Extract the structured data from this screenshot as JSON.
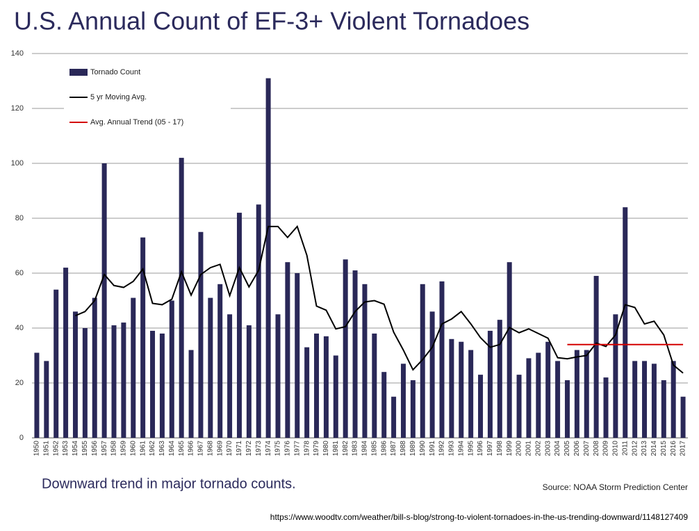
{
  "chart_data": {
    "type": "bar",
    "title": "U.S. Annual Count of EF-3+ Violent Tornadoes",
    "caption": "Downward trend in major tornado counts.",
    "source": "Source: NOAA  Storm Prediction Center",
    "url": "https://www.woodtv.com/weather/bill-s-blog/strong-to-violent-tornadoes-in-the-us-trending-downward/1148127409",
    "categories": [
      "1950",
      "1951",
      "1952",
      "1953",
      "1954",
      "1955",
      "1956",
      "1957",
      "1958",
      "1959",
      "1960",
      "1961",
      "1962",
      "1963",
      "1964",
      "1965",
      "1966",
      "1967",
      "1968",
      "1969",
      "1970",
      "1971",
      "1972",
      "1973",
      "1974",
      "1975",
      "1976",
      "1977",
      "1978",
      "1979",
      "1980",
      "1981",
      "1982",
      "1983",
      "1984",
      "1985",
      "1986",
      "1987",
      "1988",
      "1989",
      "1990",
      "1991",
      "1992",
      "1993",
      "1994",
      "1995",
      "1996",
      "1997",
      "1998",
      "1999",
      "2000",
      "2001",
      "2002",
      "2003",
      "2004",
      "2005",
      "2006",
      "2007",
      "2008",
      "2009",
      "2010",
      "2011",
      "2012",
      "2013",
      "2014",
      "2015",
      "2016",
      "2017"
    ],
    "series": [
      {
        "name": "Tornado Count",
        "type": "bar",
        "color": "#2a2858",
        "values": [
          31,
          28,
          54,
          62,
          46,
          40,
          51,
          100,
          41,
          42,
          51,
          73,
          39,
          38,
          50,
          102,
          32,
          75,
          51,
          56,
          45,
          82,
          41,
          85,
          131,
          45,
          64,
          60,
          33,
          38,
          37,
          30,
          65,
          61,
          56,
          38,
          24,
          15,
          27,
          21,
          56,
          46,
          57,
          36,
          35,
          32,
          23,
          39,
          43,
          64,
          23,
          29,
          31,
          35,
          28,
          21,
          32,
          32,
          59,
          22,
          45,
          84,
          28,
          28,
          27,
          21,
          28,
          15
        ]
      },
      {
        "name": "5 yr Moving Avg.",
        "type": "line",
        "color": "#000000",
        "values": [
          null,
          null,
          null,
          null,
          44.5,
          46,
          50,
          59.5,
          55.5,
          54.8,
          57,
          61.5,
          49,
          48.5,
          50.5,
          60.5,
          52,
          59.5,
          62,
          63.2,
          51.8,
          62,
          55,
          61,
          77,
          77,
          73,
          77,
          66.5,
          48,
          46.5,
          39.7,
          40.5,
          46,
          49.5,
          50,
          48.7,
          38.5,
          32,
          24.8,
          28.5,
          33,
          41.5,
          43.3,
          46,
          41.5,
          36.5,
          33,
          34,
          40.2,
          38.3,
          39.7,
          38,
          36.3,
          29.2,
          28.8,
          29.5,
          30,
          34.5,
          33.3,
          37.5,
          48.5,
          47.5,
          41.5,
          42.5,
          37.5,
          26.5,
          23.6
        ]
      },
      {
        "name": "Avg. Annual Trend (05 - 17)",
        "type": "line",
        "color": "#d40000",
        "values": [
          null,
          null,
          null,
          null,
          null,
          null,
          null,
          null,
          null,
          null,
          null,
          null,
          null,
          null,
          null,
          null,
          null,
          null,
          null,
          null,
          null,
          null,
          null,
          null,
          null,
          null,
          null,
          null,
          null,
          null,
          null,
          null,
          null,
          null,
          null,
          null,
          null,
          null,
          null,
          null,
          null,
          null,
          null,
          null,
          null,
          null,
          null,
          null,
          null,
          null,
          null,
          null,
          null,
          null,
          null,
          34,
          34,
          34,
          34,
          34,
          34,
          34,
          34,
          34,
          34,
          34,
          34,
          34
        ]
      }
    ],
    "ylim": [
      0,
      140
    ],
    "yticks": [
      0,
      20,
      40,
      60,
      80,
      100,
      120,
      140
    ],
    "grid": true,
    "legend": "upper-left"
  }
}
